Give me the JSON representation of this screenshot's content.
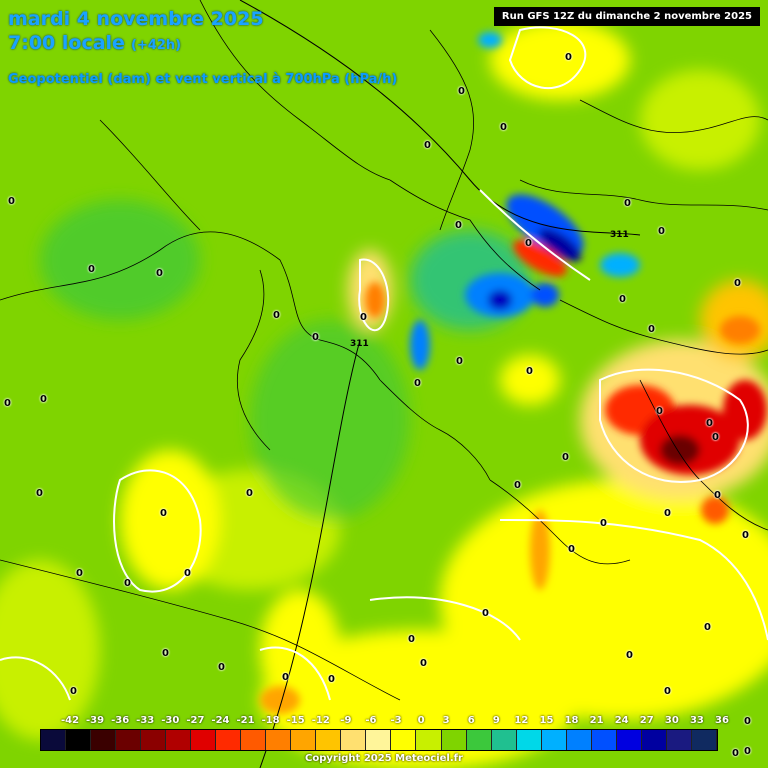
{
  "header": {
    "title_line1": "mardi 4 novembre 2025",
    "title_line2": "7:00 locale",
    "lead_time": "(+42h)",
    "subtitle": "Geopotentiel (dam) et vent vertical à 700hPa (hPa/h)",
    "run_info": "Run GFS 12Z du dimanche 2 novembre 2025"
  },
  "contour_labels": [
    "311",
    "311"
  ],
  "zero_label": "0",
  "scale": {
    "labels": [
      "-42",
      "-39",
      "-36",
      "-33",
      "-30",
      "-27",
      "-24",
      "-21",
      "-18",
      "-15",
      "-12",
      "-9",
      "-6",
      "-3",
      "0",
      "3",
      "6",
      "9",
      "12",
      "15",
      "18",
      "21",
      "24",
      "27",
      "30",
      "33",
      "36"
    ],
    "colors": [
      "#0a0a3a",
      "#000000",
      "#3a0000",
      "#6b0000",
      "#8b0000",
      "#b00000",
      "#e00000",
      "#ff2a00",
      "#ff5a00",
      "#ff7f00",
      "#ffa500",
      "#ffc400",
      "#ffe070",
      "#fff59a",
      "#ffff00",
      "#c8f000",
      "#7fd400",
      "#3cc83c",
      "#20c090",
      "#00d8e8",
      "#00b0ff",
      "#0080ff",
      "#0050ff",
      "#0000e0",
      "#0000a0",
      "#1a1a80",
      "#102a60"
    ]
  },
  "footer": {
    "copyright": "Copyright 2025 Meteociel.fr"
  }
}
